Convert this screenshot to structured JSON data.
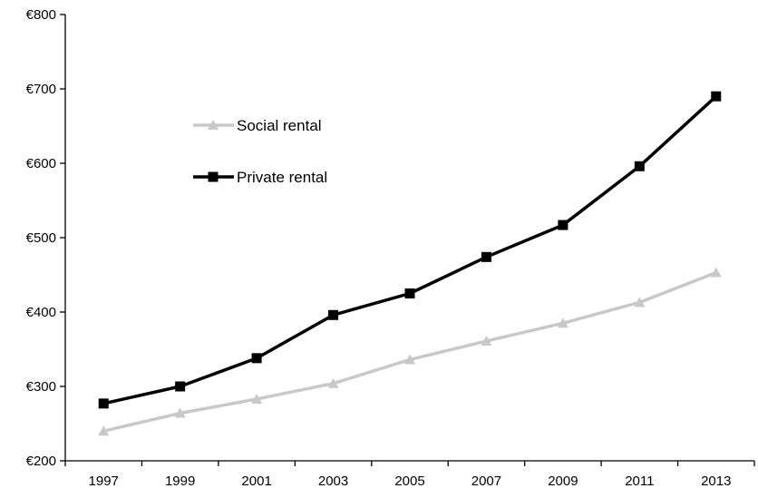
{
  "chart_data": {
    "type": "line",
    "title": "",
    "xlabel": "",
    "ylabel": "",
    "categories": [
      "1997",
      "1999",
      "2001",
      "2003",
      "2005",
      "2007",
      "2009",
      "2011",
      "2013"
    ],
    "y_ticks": [
      "€200",
      "€300",
      "€400",
      "€500",
      "€600",
      "€700",
      "€800"
    ],
    "ylim": [
      200,
      800
    ],
    "grid": false,
    "legend_position": "upper-left",
    "series": [
      {
        "name": "Social rental",
        "color": "#c8c8c8",
        "marker": "triangle",
        "values": [
          240,
          264,
          283,
          304,
          336,
          361,
          385,
          413,
          453
        ]
      },
      {
        "name": "Private rental",
        "color": "#000000",
        "marker": "square",
        "values": [
          277,
          300,
          338,
          396,
          425,
          474,
          517,
          596,
          690
        ]
      }
    ]
  }
}
